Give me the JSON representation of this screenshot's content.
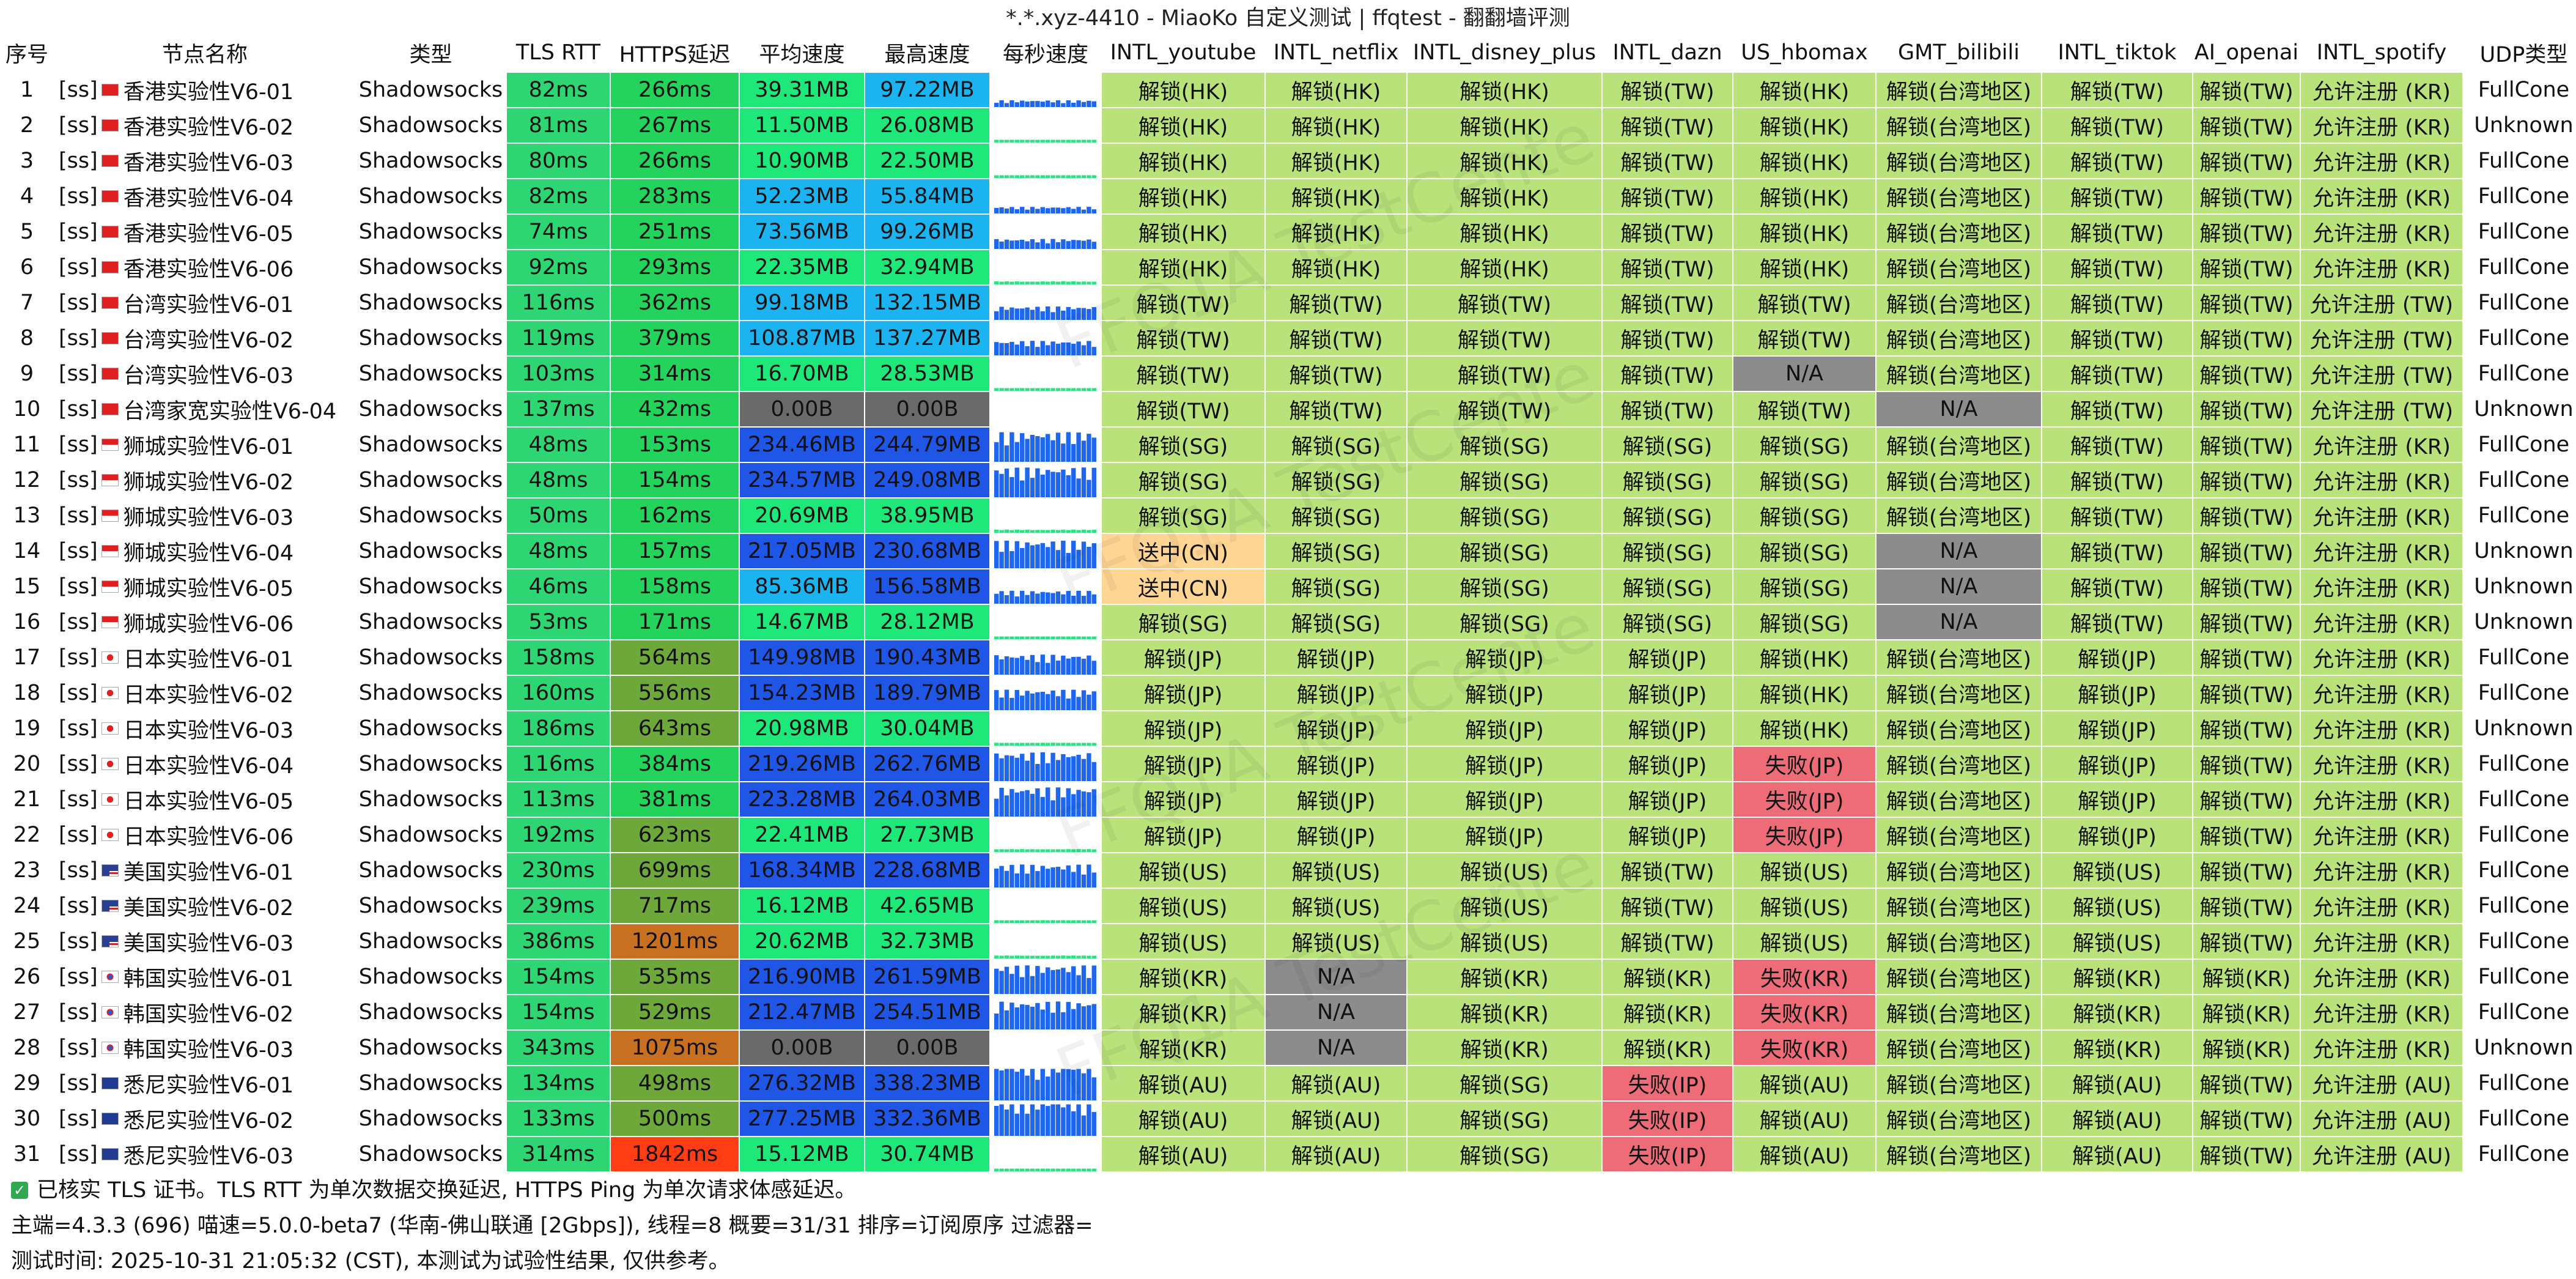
{
  "window_title": "*.*.xyz-4410 - MiaoKo 自定义测试 | ffqtest - 翻翻墙评测",
  "watermark": "FFQ1A TestCente",
  "columns": [
    "序号",
    "节点名称",
    "类型",
    "TLS RTT",
    "HTTPS延迟",
    "平均速度",
    "最高速度",
    "每秒速度",
    "INTL_youtube",
    "INTL_netflix",
    "INTL_disney_plus",
    "INTL_dazn",
    "US_hbomax",
    "GMT_bilibili",
    "INTL_tiktok",
    "AI_openai",
    "INTL_spotify",
    "UDP类型"
  ],
  "colors": {
    "header_bg": "#ffffff",
    "row_bg": "#ffffff",
    "tls_green": "#2ed673",
    "https_green": "#23d35c",
    "https_olive": "#6ea83a",
    "https_orange": "#c87022",
    "https_red": "#ff3d14",
    "speed_low": "#1ee87a",
    "speed_mid": "#1bb4f0",
    "speed_high": "#1f56e6",
    "speed_zero": "#6a6a6a",
    "unlock_green": "#b9e27a",
    "na_gray": "#8c8c8c",
    "fail_red": "#ee6b78",
    "pending_orange": "#ffd593",
    "udp_bg": "#ffffff",
    "spark_blue": "#1f66ee",
    "spark_green": "#2ee284"
  },
  "rows": [
    {
      "idx": "1",
      "tag": "[ss]",
      "flag": "hk",
      "name": "香港实验性V6-01",
      "type": "Shadowsocks",
      "tls": "82ms",
      "https": "266ms",
      "avg": "39.31MB",
      "max": "97.22MB",
      "yt": "解锁(HK)",
      "nf": "解锁(HK)",
      "dp": "解锁(HK)",
      "dz": "解锁(TW)",
      "hbo": "解锁(HK)",
      "bili": "解锁(台湾地区)",
      "tt": "解锁(TW)",
      "ai": "解锁(TW)",
      "sp": "允许注册 (KR)",
      "udp": "FullCone"
    },
    {
      "idx": "2",
      "tag": "[ss]",
      "flag": "hk",
      "name": "香港实验性V6-02",
      "type": "Shadowsocks",
      "tls": "81ms",
      "https": "267ms",
      "avg": "11.50MB",
      "max": "26.08MB",
      "yt": "解锁(HK)",
      "nf": "解锁(HK)",
      "dp": "解锁(HK)",
      "dz": "解锁(TW)",
      "hbo": "解锁(HK)",
      "bili": "解锁(台湾地区)",
      "tt": "解锁(TW)",
      "ai": "解锁(TW)",
      "sp": "允许注册 (KR)",
      "udp": "Unknown"
    },
    {
      "idx": "3",
      "tag": "[ss]",
      "flag": "hk",
      "name": "香港实验性V6-03",
      "type": "Shadowsocks",
      "tls": "80ms",
      "https": "266ms",
      "avg": "10.90MB",
      "max": "22.50MB",
      "yt": "解锁(HK)",
      "nf": "解锁(HK)",
      "dp": "解锁(HK)",
      "dz": "解锁(TW)",
      "hbo": "解锁(HK)",
      "bili": "解锁(台湾地区)",
      "tt": "解锁(TW)",
      "ai": "解锁(TW)",
      "sp": "允许注册 (KR)",
      "udp": "FullCone"
    },
    {
      "idx": "4",
      "tag": "[ss]",
      "flag": "hk",
      "name": "香港实验性V6-04",
      "type": "Shadowsocks",
      "tls": "82ms",
      "https": "283ms",
      "avg": "52.23MB",
      "max": "55.84MB",
      "yt": "解锁(HK)",
      "nf": "解锁(HK)",
      "dp": "解锁(HK)",
      "dz": "解锁(TW)",
      "hbo": "解锁(HK)",
      "bili": "解锁(台湾地区)",
      "tt": "解锁(TW)",
      "ai": "解锁(TW)",
      "sp": "允许注册 (KR)",
      "udp": "FullCone"
    },
    {
      "idx": "5",
      "tag": "[ss]",
      "flag": "hk",
      "name": "香港实验性V6-05",
      "type": "Shadowsocks",
      "tls": "74ms",
      "https": "251ms",
      "avg": "73.56MB",
      "max": "99.26MB",
      "yt": "解锁(HK)",
      "nf": "解锁(HK)",
      "dp": "解锁(HK)",
      "dz": "解锁(TW)",
      "hbo": "解锁(HK)",
      "bili": "解锁(台湾地区)",
      "tt": "解锁(TW)",
      "ai": "解锁(TW)",
      "sp": "允许注册 (KR)",
      "udp": "FullCone"
    },
    {
      "idx": "6",
      "tag": "[ss]",
      "flag": "hk",
      "name": "香港实验性V6-06",
      "type": "Shadowsocks",
      "tls": "92ms",
      "https": "293ms",
      "avg": "22.35MB",
      "max": "32.94MB",
      "yt": "解锁(HK)",
      "nf": "解锁(HK)",
      "dp": "解锁(HK)",
      "dz": "解锁(TW)",
      "hbo": "解锁(HK)",
      "bili": "解锁(台湾地区)",
      "tt": "解锁(TW)",
      "ai": "解锁(TW)",
      "sp": "允许注册 (KR)",
      "udp": "FullCone"
    },
    {
      "idx": "7",
      "tag": "[ss]",
      "flag": "cn",
      "name": "台湾实验性V6-01",
      "type": "Shadowsocks",
      "tls": "116ms",
      "https": "362ms",
      "avg": "99.18MB",
      "max": "132.15MB",
      "yt": "解锁(TW)",
      "nf": "解锁(TW)",
      "dp": "解锁(TW)",
      "dz": "解锁(TW)",
      "hbo": "解锁(TW)",
      "bili": "解锁(台湾地区)",
      "tt": "解锁(TW)",
      "ai": "解锁(TW)",
      "sp": "允许注册 (TW)",
      "udp": "FullCone"
    },
    {
      "idx": "8",
      "tag": "[ss]",
      "flag": "cn",
      "name": "台湾实验性V6-02",
      "type": "Shadowsocks",
      "tls": "119ms",
      "https": "379ms",
      "avg": "108.87MB",
      "max": "137.27MB",
      "yt": "解锁(TW)",
      "nf": "解锁(TW)",
      "dp": "解锁(TW)",
      "dz": "解锁(TW)",
      "hbo": "解锁(TW)",
      "bili": "解锁(台湾地区)",
      "tt": "解锁(TW)",
      "ai": "解锁(TW)",
      "sp": "允许注册 (TW)",
      "udp": "FullCone"
    },
    {
      "idx": "9",
      "tag": "[ss]",
      "flag": "cn",
      "name": "台湾实验性V6-03",
      "type": "Shadowsocks",
      "tls": "103ms",
      "https": "314ms",
      "avg": "16.70MB",
      "max": "28.53MB",
      "yt": "解锁(TW)",
      "nf": "解锁(TW)",
      "dp": "解锁(TW)",
      "dz": "解锁(TW)",
      "hbo": "N/A",
      "bili": "解锁(台湾地区)",
      "tt": "解锁(TW)",
      "ai": "解锁(TW)",
      "sp": "允许注册 (TW)",
      "udp": "FullCone"
    },
    {
      "idx": "10",
      "tag": "[ss]",
      "flag": "cn",
      "name": "台湾家宽实验性V6-04",
      "type": "Shadowsocks",
      "tls": "137ms",
      "https": "432ms",
      "avg": "0.00B",
      "max": "0.00B",
      "yt": "解锁(TW)",
      "nf": "解锁(TW)",
      "dp": "解锁(TW)",
      "dz": "解锁(TW)",
      "hbo": "解锁(TW)",
      "bili": "N/A",
      "tt": "解锁(TW)",
      "ai": "解锁(TW)",
      "sp": "允许注册 (TW)",
      "udp": "Unknown"
    },
    {
      "idx": "11",
      "tag": "[ss]",
      "flag": "sg",
      "name": "狮城实验性V6-01",
      "type": "Shadowsocks",
      "tls": "48ms",
      "https": "153ms",
      "avg": "234.46MB",
      "max": "244.79MB",
      "yt": "解锁(SG)",
      "nf": "解锁(SG)",
      "dp": "解锁(SG)",
      "dz": "解锁(SG)",
      "hbo": "解锁(SG)",
      "bili": "解锁(台湾地区)",
      "tt": "解锁(TW)",
      "ai": "解锁(TW)",
      "sp": "允许注册 (KR)",
      "udp": "FullCone"
    },
    {
      "idx": "12",
      "tag": "[ss]",
      "flag": "sg",
      "name": "狮城实验性V6-02",
      "type": "Shadowsocks",
      "tls": "48ms",
      "https": "154ms",
      "avg": "234.57MB",
      "max": "249.08MB",
      "yt": "解锁(SG)",
      "nf": "解锁(SG)",
      "dp": "解锁(SG)",
      "dz": "解锁(SG)",
      "hbo": "解锁(SG)",
      "bili": "解锁(台湾地区)",
      "tt": "解锁(TW)",
      "ai": "解锁(TW)",
      "sp": "允许注册 (KR)",
      "udp": "FullCone"
    },
    {
      "idx": "13",
      "tag": "[ss]",
      "flag": "sg",
      "name": "狮城实验性V6-03",
      "type": "Shadowsocks",
      "tls": "50ms",
      "https": "162ms",
      "avg": "20.69MB",
      "max": "38.95MB",
      "yt": "解锁(SG)",
      "nf": "解锁(SG)",
      "dp": "解锁(SG)",
      "dz": "解锁(SG)",
      "hbo": "解锁(SG)",
      "bili": "解锁(台湾地区)",
      "tt": "解锁(TW)",
      "ai": "解锁(TW)",
      "sp": "允许注册 (KR)",
      "udp": "FullCone"
    },
    {
      "idx": "14",
      "tag": "[ss]",
      "flag": "sg",
      "name": "狮城实验性V6-04",
      "type": "Shadowsocks",
      "tls": "48ms",
      "https": "157ms",
      "avg": "217.05MB",
      "max": "230.68MB",
      "yt": "送中(CN)",
      "nf": "解锁(SG)",
      "dp": "解锁(SG)",
      "dz": "解锁(SG)",
      "hbo": "解锁(SG)",
      "bili": "N/A",
      "tt": "解锁(TW)",
      "ai": "解锁(TW)",
      "sp": "允许注册 (KR)",
      "udp": "Unknown"
    },
    {
      "idx": "15",
      "tag": "[ss]",
      "flag": "sg",
      "name": "狮城实验性V6-05",
      "type": "Shadowsocks",
      "tls": "46ms",
      "https": "158ms",
      "avg": "85.36MB",
      "max": "156.58MB",
      "yt": "送中(CN)",
      "nf": "解锁(SG)",
      "dp": "解锁(SG)",
      "dz": "解锁(SG)",
      "hbo": "解锁(SG)",
      "bili": "N/A",
      "tt": "解锁(TW)",
      "ai": "解锁(TW)",
      "sp": "允许注册 (KR)",
      "udp": "Unknown"
    },
    {
      "idx": "16",
      "tag": "[ss]",
      "flag": "sg",
      "name": "狮城实验性V6-06",
      "type": "Shadowsocks",
      "tls": "53ms",
      "https": "171ms",
      "avg": "14.67MB",
      "max": "28.12MB",
      "yt": "解锁(SG)",
      "nf": "解锁(SG)",
      "dp": "解锁(SG)",
      "dz": "解锁(SG)",
      "hbo": "解锁(SG)",
      "bili": "N/A",
      "tt": "解锁(TW)",
      "ai": "解锁(TW)",
      "sp": "允许注册 (KR)",
      "udp": "Unknown"
    },
    {
      "idx": "17",
      "tag": "[ss]",
      "flag": "jp",
      "name": "日本实验性V6-01",
      "type": "Shadowsocks",
      "tls": "158ms",
      "https": "564ms",
      "avg": "149.98MB",
      "max": "190.43MB",
      "yt": "解锁(JP)",
      "nf": "解锁(JP)",
      "dp": "解锁(JP)",
      "dz": "解锁(JP)",
      "hbo": "解锁(HK)",
      "bili": "解锁(台湾地区)",
      "tt": "解锁(JP)",
      "ai": "解锁(TW)",
      "sp": "允许注册 (KR)",
      "udp": "FullCone"
    },
    {
      "idx": "18",
      "tag": "[ss]",
      "flag": "jp",
      "name": "日本实验性V6-02",
      "type": "Shadowsocks",
      "tls": "160ms",
      "https": "556ms",
      "avg": "154.23MB",
      "max": "189.79MB",
      "yt": "解锁(JP)",
      "nf": "解锁(JP)",
      "dp": "解锁(JP)",
      "dz": "解锁(JP)",
      "hbo": "解锁(HK)",
      "bili": "解锁(台湾地区)",
      "tt": "解锁(JP)",
      "ai": "解锁(TW)",
      "sp": "允许注册 (KR)",
      "udp": "FullCone"
    },
    {
      "idx": "19",
      "tag": "[ss]",
      "flag": "jp",
      "name": "日本实验性V6-03",
      "type": "Shadowsocks",
      "tls": "186ms",
      "https": "643ms",
      "avg": "20.98MB",
      "max": "30.04MB",
      "yt": "解锁(JP)",
      "nf": "解锁(JP)",
      "dp": "解锁(JP)",
      "dz": "解锁(JP)",
      "hbo": "解锁(HK)",
      "bili": "解锁(台湾地区)",
      "tt": "解锁(JP)",
      "ai": "解锁(TW)",
      "sp": "允许注册 (KR)",
      "udp": "Unknown"
    },
    {
      "idx": "20",
      "tag": "[ss]",
      "flag": "jp",
      "name": "日本实验性V6-04",
      "type": "Shadowsocks",
      "tls": "116ms",
      "https": "384ms",
      "avg": "219.26MB",
      "max": "262.76MB",
      "yt": "解锁(JP)",
      "nf": "解锁(JP)",
      "dp": "解锁(JP)",
      "dz": "解锁(JP)",
      "hbo": "失败(JP)",
      "bili": "解锁(台湾地区)",
      "tt": "解锁(JP)",
      "ai": "解锁(TW)",
      "sp": "允许注册 (KR)",
      "udp": "FullCone"
    },
    {
      "idx": "21",
      "tag": "[ss]",
      "flag": "jp",
      "name": "日本实验性V6-05",
      "type": "Shadowsocks",
      "tls": "113ms",
      "https": "381ms",
      "avg": "223.28MB",
      "max": "264.03MB",
      "yt": "解锁(JP)",
      "nf": "解锁(JP)",
      "dp": "解锁(JP)",
      "dz": "解锁(JP)",
      "hbo": "失败(JP)",
      "bili": "解锁(台湾地区)",
      "tt": "解锁(JP)",
      "ai": "解锁(TW)",
      "sp": "允许注册 (KR)",
      "udp": "FullCone"
    },
    {
      "idx": "22",
      "tag": "[ss]",
      "flag": "jp",
      "name": "日本实验性V6-06",
      "type": "Shadowsocks",
      "tls": "192ms",
      "https": "623ms",
      "avg": "22.41MB",
      "max": "27.73MB",
      "yt": "解锁(JP)",
      "nf": "解锁(JP)",
      "dp": "解锁(JP)",
      "dz": "解锁(JP)",
      "hbo": "失败(JP)",
      "bili": "解锁(台湾地区)",
      "tt": "解锁(JP)",
      "ai": "解锁(TW)",
      "sp": "允许注册 (KR)",
      "udp": "FullCone"
    },
    {
      "idx": "23",
      "tag": "[ss]",
      "flag": "us",
      "name": "美国实验性V6-01",
      "type": "Shadowsocks",
      "tls": "230ms",
      "https": "699ms",
      "avg": "168.34MB",
      "max": "228.68MB",
      "yt": "解锁(US)",
      "nf": "解锁(US)",
      "dp": "解锁(US)",
      "dz": "解锁(TW)",
      "hbo": "解锁(US)",
      "bili": "解锁(台湾地区)",
      "tt": "解锁(US)",
      "ai": "解锁(TW)",
      "sp": "允许注册 (KR)",
      "udp": "FullCone"
    },
    {
      "idx": "24",
      "tag": "[ss]",
      "flag": "us",
      "name": "美国实验性V6-02",
      "type": "Shadowsocks",
      "tls": "239ms",
      "https": "717ms",
      "avg": "16.12MB",
      "max": "42.65MB",
      "yt": "解锁(US)",
      "nf": "解锁(US)",
      "dp": "解锁(US)",
      "dz": "解锁(TW)",
      "hbo": "解锁(US)",
      "bili": "解锁(台湾地区)",
      "tt": "解锁(US)",
      "ai": "解锁(TW)",
      "sp": "允许注册 (KR)",
      "udp": "FullCone"
    },
    {
      "idx": "25",
      "tag": "[ss]",
      "flag": "us",
      "name": "美国实验性V6-03",
      "type": "Shadowsocks",
      "tls": "386ms",
      "https": "1201ms",
      "avg": "20.62MB",
      "max": "32.73MB",
      "yt": "解锁(US)",
      "nf": "解锁(US)",
      "dp": "解锁(US)",
      "dz": "解锁(TW)",
      "hbo": "解锁(US)",
      "bili": "解锁(台湾地区)",
      "tt": "解锁(US)",
      "ai": "解锁(TW)",
      "sp": "允许注册 (KR)",
      "udp": "FullCone"
    },
    {
      "idx": "26",
      "tag": "[ss]",
      "flag": "kr",
      "name": "韩国实验性V6-01",
      "type": "Shadowsocks",
      "tls": "154ms",
      "https": "535ms",
      "avg": "216.90MB",
      "max": "261.59MB",
      "yt": "解锁(KR)",
      "nf": "N/A",
      "dp": "解锁(KR)",
      "dz": "解锁(KR)",
      "hbo": "失败(KR)",
      "bili": "解锁(台湾地区)",
      "tt": "解锁(KR)",
      "ai": "解锁(KR)",
      "sp": "允许注册 (KR)",
      "udp": "FullCone"
    },
    {
      "idx": "27",
      "tag": "[ss]",
      "flag": "kr",
      "name": "韩国实验性V6-02",
      "type": "Shadowsocks",
      "tls": "154ms",
      "https": "529ms",
      "avg": "212.47MB",
      "max": "254.51MB",
      "yt": "解锁(KR)",
      "nf": "N/A",
      "dp": "解锁(KR)",
      "dz": "解锁(KR)",
      "hbo": "失败(KR)",
      "bili": "解锁(台湾地区)",
      "tt": "解锁(KR)",
      "ai": "解锁(KR)",
      "sp": "允许注册 (KR)",
      "udp": "FullCone"
    },
    {
      "idx": "28",
      "tag": "[ss]",
      "flag": "kr",
      "name": "韩国实验性V6-03",
      "type": "Shadowsocks",
      "tls": "343ms",
      "https": "1075ms",
      "avg": "0.00B",
      "max": "0.00B",
      "yt": "解锁(KR)",
      "nf": "N/A",
      "dp": "解锁(KR)",
      "dz": "解锁(KR)",
      "hbo": "失败(KR)",
      "bili": "解锁(台湾地区)",
      "tt": "解锁(KR)",
      "ai": "解锁(KR)",
      "sp": "允许注册 (KR)",
      "udp": "Unknown"
    },
    {
      "idx": "29",
      "tag": "[ss]",
      "flag": "au",
      "name": "悉尼实验性V6-01",
      "type": "Shadowsocks",
      "tls": "134ms",
      "https": "498ms",
      "avg": "276.32MB",
      "max": "338.23MB",
      "yt": "解锁(AU)",
      "nf": "解锁(AU)",
      "dp": "解锁(SG)",
      "dz": "失败(IP)",
      "hbo": "解锁(AU)",
      "bili": "解锁(台湾地区)",
      "tt": "解锁(AU)",
      "ai": "解锁(TW)",
      "sp": "允许注册 (AU)",
      "udp": "FullCone"
    },
    {
      "idx": "30",
      "tag": "[ss]",
      "flag": "au",
      "name": "悉尼实验性V6-02",
      "type": "Shadowsocks",
      "tls": "133ms",
      "https": "500ms",
      "avg": "277.25MB",
      "max": "332.36MB",
      "yt": "解锁(AU)",
      "nf": "解锁(AU)",
      "dp": "解锁(SG)",
      "dz": "失败(IP)",
      "hbo": "解锁(AU)",
      "bili": "解锁(台湾地区)",
      "tt": "解锁(AU)",
      "ai": "解锁(TW)",
      "sp": "允许注册 (AU)",
      "udp": "FullCone"
    },
    {
      "idx": "31",
      "tag": "[ss]",
      "flag": "au",
      "name": "悉尼实验性V6-03",
      "type": "Shadowsocks",
      "tls": "314ms",
      "https": "1842ms",
      "avg": "15.12MB",
      "max": "30.74MB",
      "yt": "解锁(AU)",
      "nf": "解锁(AU)",
      "dp": "解锁(SG)",
      "dz": "失败(IP)",
      "hbo": "解锁(AU)",
      "bili": "解锁(台湾地区)",
      "tt": "解锁(AU)",
      "ai": "解锁(TW)",
      "sp": "允许注册 (AU)",
      "udp": "FullCone"
    }
  ],
  "footer": {
    "note": "已核实 TLS 证书。TLS RTT 为单次数据交换延迟, HTTPS Ping 为单次请求体感延迟。",
    "summary": "主端=4.3.3 (696) 喵速=5.0.0-beta7 (华南-佛山联通 [2Gbps]), 线程=8 概要=31/31 排序=订阅原序 过滤器=",
    "test_time": "测试时间: 2025-10-31 21:05:32 (CST), 本测试为试验性结果, 仅供参考。"
  }
}
